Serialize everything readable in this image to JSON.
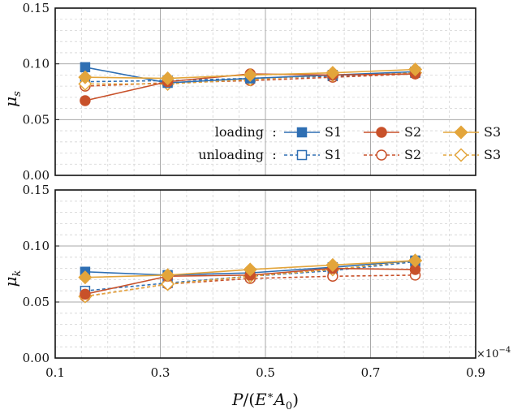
{
  "chart_data": {
    "type": "line",
    "x_label": "P/(E*A0)",
    "x_ticks": [
      "0.1",
      "0.3",
      "0.5",
      "0.7",
      "0.9"
    ],
    "x_range": [
      0.1,
      0.9
    ],
    "x_multiplier": "×10−4",
    "grid": true,
    "legend": {
      "placement": "inside-bottom-right of top panel",
      "row_labels": [
        "loading",
        "unloading"
      ],
      "separator": ":",
      "series_labels": [
        "S1",
        "S2",
        "S3"
      ]
    },
    "colors": {
      "S1": "#2f6fb3",
      "S2": "#c8512a",
      "S3": "#e3a53b"
    },
    "panels": [
      {
        "id": "mu_s",
        "y_label": "μs",
        "y_range": [
          0.0,
          0.15
        ],
        "y_ticks": [
          "0.00",
          "0.05",
          "0.10",
          "0.15"
        ],
        "x": [
          0.157,
          0.314,
          0.471,
          0.628,
          0.785
        ],
        "series": [
          {
            "name": "S1",
            "mode": "loading",
            "marker": "square",
            "filled": true,
            "values": [
              0.097,
              0.083,
              0.087,
              0.09,
              0.093
            ]
          },
          {
            "name": "S2",
            "mode": "loading",
            "marker": "circle",
            "filled": true,
            "values": [
              0.067,
              0.084,
              0.091,
              0.09,
              0.091
            ]
          },
          {
            "name": "S3",
            "mode": "loading",
            "marker": "diamond",
            "filled": true,
            "values": [
              0.088,
              0.087,
              0.09,
              0.092,
              0.095
            ]
          },
          {
            "name": "S1",
            "mode": "unloading",
            "marker": "square",
            "filled": false,
            "values": [
              0.084,
              0.085,
              0.087,
              0.089,
              0.092
            ]
          },
          {
            "name": "S2",
            "mode": "unloading",
            "marker": "circle",
            "filled": false,
            "values": [
              0.08,
              0.083,
              0.085,
              0.088,
              0.091
            ]
          },
          {
            "name": "S3",
            "mode": "unloading",
            "marker": "diamond",
            "filled": false,
            "values": [
              0.082,
              0.082,
              0.086,
              0.09,
              0.092
            ]
          }
        ]
      },
      {
        "id": "mu_k",
        "y_label": "μk",
        "y_range": [
          0.0,
          0.15
        ],
        "y_ticks": [
          "0.00",
          "0.05",
          "0.10",
          "0.15"
        ],
        "x": [
          0.157,
          0.314,
          0.471,
          0.628,
          0.785
        ],
        "series": [
          {
            "name": "S1",
            "mode": "loading",
            "marker": "square",
            "filled": true,
            "values": [
              0.077,
              0.074,
              0.076,
              0.081,
              0.087
            ]
          },
          {
            "name": "S2",
            "mode": "loading",
            "marker": "circle",
            "filled": true,
            "values": [
              0.057,
              0.073,
              0.074,
              0.08,
              0.079
            ]
          },
          {
            "name": "S3",
            "mode": "loading",
            "marker": "diamond",
            "filled": true,
            "values": [
              0.072,
              0.074,
              0.079,
              0.083,
              0.087
            ]
          },
          {
            "name": "S1",
            "mode": "unloading",
            "marker": "square",
            "filled": false,
            "values": [
              0.06,
              0.067,
              0.073,
              0.078,
              0.086
            ]
          },
          {
            "name": "S2",
            "mode": "unloading",
            "marker": "circle",
            "filled": false,
            "values": [
              0.055,
              0.066,
              0.071,
              0.073,
              0.074
            ]
          },
          {
            "name": "S3",
            "mode": "unloading",
            "marker": "diamond",
            "filled": false,
            "values": [
              0.055,
              0.066,
              0.073,
              0.079,
              0.087
            ]
          }
        ]
      }
    ]
  }
}
